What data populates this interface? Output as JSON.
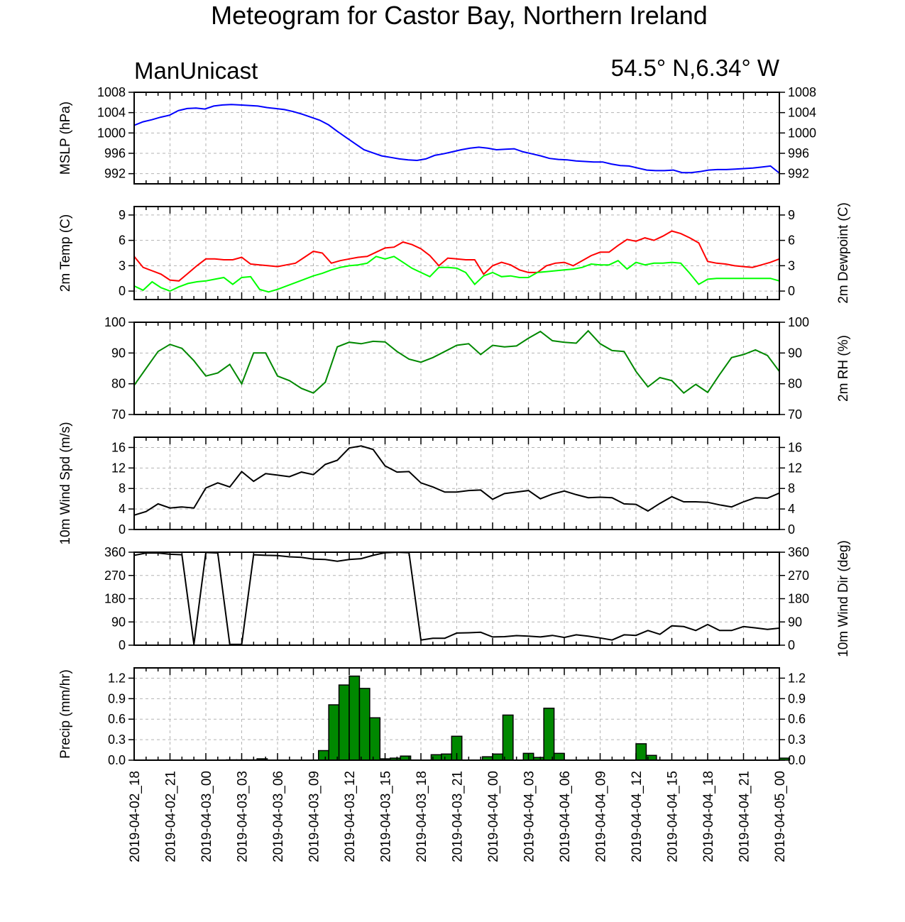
{
  "title": "Meteogram for Castor Bay, Northern Ireland",
  "model_label": "ManUnicast",
  "location_label": "54.5° N,6.34° W",
  "x_tick_labels": [
    "2019-04-02_18",
    "2019-04-02_21",
    "2019-04-03_00",
    "2019-04-03_03",
    "2019-04-03_06",
    "2019-04-03_09",
    "2019-04-03_12",
    "2019-04-03_15",
    "2019-04-03_18",
    "2019-04-03_21",
    "2019-04-04_00",
    "2019-04-04_03",
    "2019-04-04_06",
    "2019-04-04_09",
    "2019-04-04_12",
    "2019-04-04_15",
    "2019-04-04_18",
    "2019-04-04_21",
    "2019-04-05_00"
  ],
  "chart_data": [
    {
      "type": "line",
      "ylabel_left": "MSLP (hPa)",
      "ylabel_right": "",
      "ylim": [
        990,
        1008
      ],
      "yticks": [
        992,
        996,
        1000,
        1004,
        1008
      ],
      "right_tick_labels": true,
      "grid": true,
      "x_step_hours": 1,
      "series": [
        {
          "color": "#0000ff",
          "values": [
            1001.5,
            1002.2,
            1002.6,
            1003.1,
            1003.5,
            1004.4,
            1004.8,
            1004.9,
            1004.7,
            1005.3,
            1005.5,
            1005.6,
            1005.5,
            1005.4,
            1005.3,
            1005.0,
            1004.8,
            1004.6,
            1004.2,
            1003.7,
            1003.1,
            1002.5,
            1001.6,
            1000.3,
            999.1,
            997.9,
            996.7,
            996.1,
            995.5,
            995.2,
            994.9,
            994.7,
            994.6,
            994.9,
            995.6,
            995.9,
            996.3,
            996.7,
            997.0,
            997.2,
            997.0,
            996.7,
            996.8,
            996.9,
            996.3,
            995.9,
            995.5,
            995.0,
            994.8,
            994.7,
            994.5,
            994.4,
            994.3,
            994.3,
            993.9,
            993.6,
            993.5,
            993.1,
            992.7,
            992.6,
            992.6,
            992.7,
            992.2,
            992.2,
            992.4,
            992.7,
            992.8,
            992.8,
            992.9,
            993.0,
            993.1,
            993.3,
            993.5,
            992.1
          ]
        }
      ]
    },
    {
      "type": "line",
      "ylabel_left": "2m Temp (C)",
      "ylabel_right": "2m Dewpoint (C)",
      "ylim": [
        -1,
        10
      ],
      "yticks": [
        0,
        3,
        6,
        9
      ],
      "right_tick_labels": true,
      "grid": true,
      "x_step_hours": 1,
      "series": [
        {
          "color": "#ff0000",
          "values": [
            4.1,
            2.8,
            2.4,
            2.0,
            1.3,
            1.2,
            2.1,
            3.0,
            3.8,
            3.8,
            3.7,
            3.7,
            4.0,
            3.2,
            3.1,
            3.0,
            2.9,
            3.1,
            3.3,
            4.0,
            4.7,
            4.5,
            3.3,
            3.6,
            3.8,
            4.0,
            4.1,
            4.6,
            5.1,
            5.2,
            5.8,
            5.5,
            5.0,
            4.2,
            3.0,
            3.9,
            3.8,
            3.7,
            3.7,
            2.0,
            3.0,
            3.4,
            3.1,
            2.5,
            2.2,
            2.2,
            3.0,
            3.3,
            3.4,
            3.0,
            3.6,
            4.2,
            4.6,
            4.6,
            5.4,
            6.1,
            5.9,
            6.3,
            6.0,
            6.5,
            7.1,
            6.8,
            6.3,
            5.7,
            3.5,
            3.3,
            3.2,
            3.0,
            2.9,
            2.8,
            3.1,
            3.4,
            3.8
          ]
        },
        {
          "color": "#00ff00",
          "values": [
            0.6,
            0.1,
            1.1,
            0.4,
            0.0,
            0.5,
            0.9,
            1.1,
            1.2,
            1.4,
            1.6,
            0.8,
            1.6,
            1.7,
            0.2,
            -0.1,
            0.2,
            0.6,
            1.0,
            1.4,
            1.8,
            2.1,
            2.5,
            2.8,
            3.0,
            3.1,
            3.3,
            4.1,
            3.8,
            4.1,
            3.4,
            2.7,
            2.2,
            1.7,
            2.8,
            2.8,
            2.7,
            2.2,
            0.8,
            1.8,
            2.2,
            1.7,
            1.8,
            1.6,
            1.6,
            2.2,
            2.3,
            2.4,
            2.5,
            2.6,
            2.8,
            3.2,
            3.1,
            3.1,
            3.6,
            2.6,
            3.4,
            3.1,
            3.3,
            3.3,
            3.4,
            3.3,
            2.1,
            0.8,
            1.4,
            1.5,
            1.5,
            1.5,
            1.5,
            1.5,
            1.5,
            1.5,
            1.2
          ]
        }
      ]
    },
    {
      "type": "line",
      "ylabel_left": "",
      "ylabel_right": "2m RH (%)",
      "ylim": [
        70,
        100
      ],
      "yticks": [
        70,
        80,
        90,
        100
      ],
      "right_tick_labels": true,
      "grid": true,
      "x_step_hours": 1,
      "series": [
        {
          "color": "#008800",
          "values": [
            79.5,
            85.0,
            90.5,
            92.8,
            91.5,
            87.5,
            82.5,
            83.5,
            86.3,
            80.0,
            90.0,
            90.0,
            82.5,
            81.0,
            78.5,
            77.0,
            80.5,
            92.0,
            93.5,
            93.0,
            93.8,
            93.6,
            90.5,
            88.0,
            87.0,
            88.5,
            90.5,
            92.5,
            93.0,
            89.5,
            92.5,
            92.0,
            92.3,
            94.8,
            97.0,
            94.0,
            93.5,
            93.2,
            97.2,
            93.0,
            90.8,
            90.5,
            84.0,
            79.0,
            82.0,
            81.0,
            77.0,
            79.8,
            77.2,
            83.0,
            88.5,
            89.5,
            91.0,
            89.2,
            84.0
          ]
        }
      ]
    },
    {
      "type": "line",
      "ylabel_left": "10m Wind Spd (m/s)",
      "ylabel_right": "",
      "ylim": [
        0,
        18
      ],
      "yticks": [
        0,
        4,
        8,
        12,
        16
      ],
      "right_tick_labels": true,
      "grid": true,
      "x_step_hours": 1,
      "series": [
        {
          "color": "#000000",
          "values": [
            2.8,
            3.5,
            5.0,
            4.2,
            4.4,
            4.2,
            8.1,
            9.1,
            8.3,
            11.3,
            9.4,
            10.9,
            10.6,
            10.3,
            11.2,
            10.7,
            12.7,
            13.5,
            15.9,
            16.3,
            15.6,
            12.4,
            11.2,
            11.3,
            9.1,
            8.3,
            7.3,
            7.3,
            7.6,
            7.7,
            5.9,
            7.0,
            7.3,
            7.6,
            6.0,
            6.9,
            7.5,
            6.8,
            6.2,
            6.3,
            6.2,
            5.0,
            4.9,
            3.6,
            5.1,
            6.4,
            5.4,
            5.4,
            5.3,
            4.8,
            4.4,
            5.4,
            6.2,
            6.1,
            7.1
          ]
        }
      ]
    },
    {
      "type": "line",
      "ylabel_left": "",
      "ylabel_right": "10m Wind Dir (deg)",
      "ylim": [
        0,
        360
      ],
      "yticks": [
        0,
        90,
        180,
        270,
        360
      ],
      "right_tick_labels": true,
      "grid": true,
      "x_step_hours": 1,
      "series": [
        {
          "color": "#000000",
          "values": [
            348,
            357,
            357,
            352,
            350,
            3,
            359,
            357,
            3,
            3,
            350,
            348,
            347,
            342,
            340,
            333,
            332,
            325,
            332,
            335,
            348,
            358,
            360,
            358,
            20,
            27,
            27,
            47,
            48,
            50,
            32,
            33,
            37,
            35,
            32,
            38,
            30,
            40,
            35,
            28,
            20,
            40,
            38,
            57,
            42,
            75,
            72,
            57,
            80,
            57,
            57,
            72,
            67,
            61,
            66
          ]
        }
      ]
    },
    {
      "type": "bar",
      "ylabel_left": "Precip (mm/hr)",
      "ylabel_right": "",
      "ylim": [
        0,
        1.35
      ],
      "yticks": [
        0.0,
        0.3,
        0.6,
        0.9,
        1.2
      ],
      "ytick_labels": [
        "0.0",
        "0.3",
        "0.6",
        "0.9",
        "1.2"
      ],
      "right_tick_labels": true,
      "grid": true,
      "x_step_hours": 1,
      "bar_color": "#008800",
      "values": [
        0,
        0,
        0,
        0,
        0,
        0,
        0,
        0,
        0,
        0.005,
        0.005,
        0.005,
        0.02,
        0,
        0,
        0,
        0,
        0,
        0.14,
        0.81,
        1.1,
        1.23,
        1.05,
        0.62,
        0.02,
        0.03,
        0.06,
        0,
        0,
        0.08,
        0.09,
        0.35,
        0,
        0,
        0.05,
        0.09,
        0.66,
        0,
        0.1,
        0.04,
        0.76,
        0.1,
        0,
        0,
        0,
        0,
        0,
        0,
        0,
        0.24,
        0.07,
        0,
        0,
        0,
        0,
        0,
        0,
        0,
        0,
        0,
        0,
        0,
        0,
        0.03
      ]
    }
  ],
  "chart_layout_note": ""
}
